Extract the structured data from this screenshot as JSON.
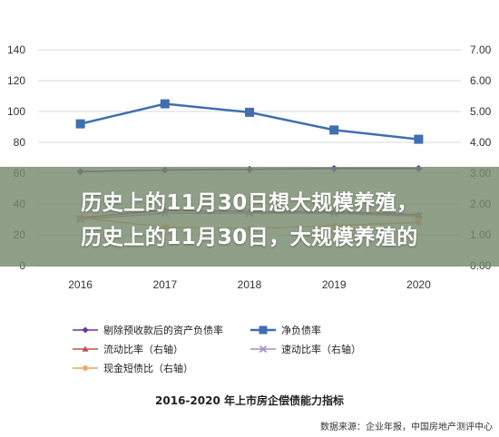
{
  "overlay": {
    "line1": "历史上的11月30日想大规模养殖，",
    "line2": "历史上的11月30日，大规模养殖的"
  },
  "chart_data": {
    "type": "line",
    "title": "2016-2020 年上市房企偿债能力指标",
    "source": "数据来源：企业年报，中国房地产测评中心",
    "categories": [
      "2016",
      "2017",
      "2018",
      "2019",
      "2020"
    ],
    "y_left": {
      "ylim": [
        0,
        140
      ],
      "ticks": [
        "0",
        "20",
        "40",
        "60",
        "80",
        "100",
        "120",
        "140"
      ]
    },
    "y_right": {
      "ylim": [
        0,
        7
      ],
      "ticks": [
        "0.00",
        "1.00",
        "2.00",
        "3.00",
        "4.00",
        "5.00",
        "6.00",
        "7.00"
      ]
    },
    "grid": true,
    "legend_position": "bottom",
    "series": [
      {
        "name": "剔除预收款后的资产负债率",
        "axis": "left",
        "marker": "diamond",
        "color": "#7030a0",
        "values": [
          61,
          62,
          62.5,
          63,
          63
        ]
      },
      {
        "name": "净负债率",
        "axis": "left",
        "marker": "square",
        "color": "#3f6fb0",
        "values": [
          92,
          105,
          99.5,
          88,
          82
        ]
      },
      {
        "name": "流动比率（右轴）",
        "axis": "right",
        "marker": "triangle",
        "color": "#c0504d",
        "values": [
          1.55,
          1.8,
          1.75,
          1.75,
          1.65
        ]
      },
      {
        "name": "速动比率（右轴）",
        "axis": "right",
        "marker": "x",
        "color": "#a68cc4",
        "values": [
          1.5,
          1.7,
          1.7,
          1.7,
          1.6
        ]
      },
      {
        "name": "现金短债比（右轴）",
        "axis": "right",
        "marker": "star",
        "color": "#f0a35b",
        "values": [
          1.55,
          1.25,
          1.2,
          1.3,
          1.4
        ]
      }
    ]
  }
}
